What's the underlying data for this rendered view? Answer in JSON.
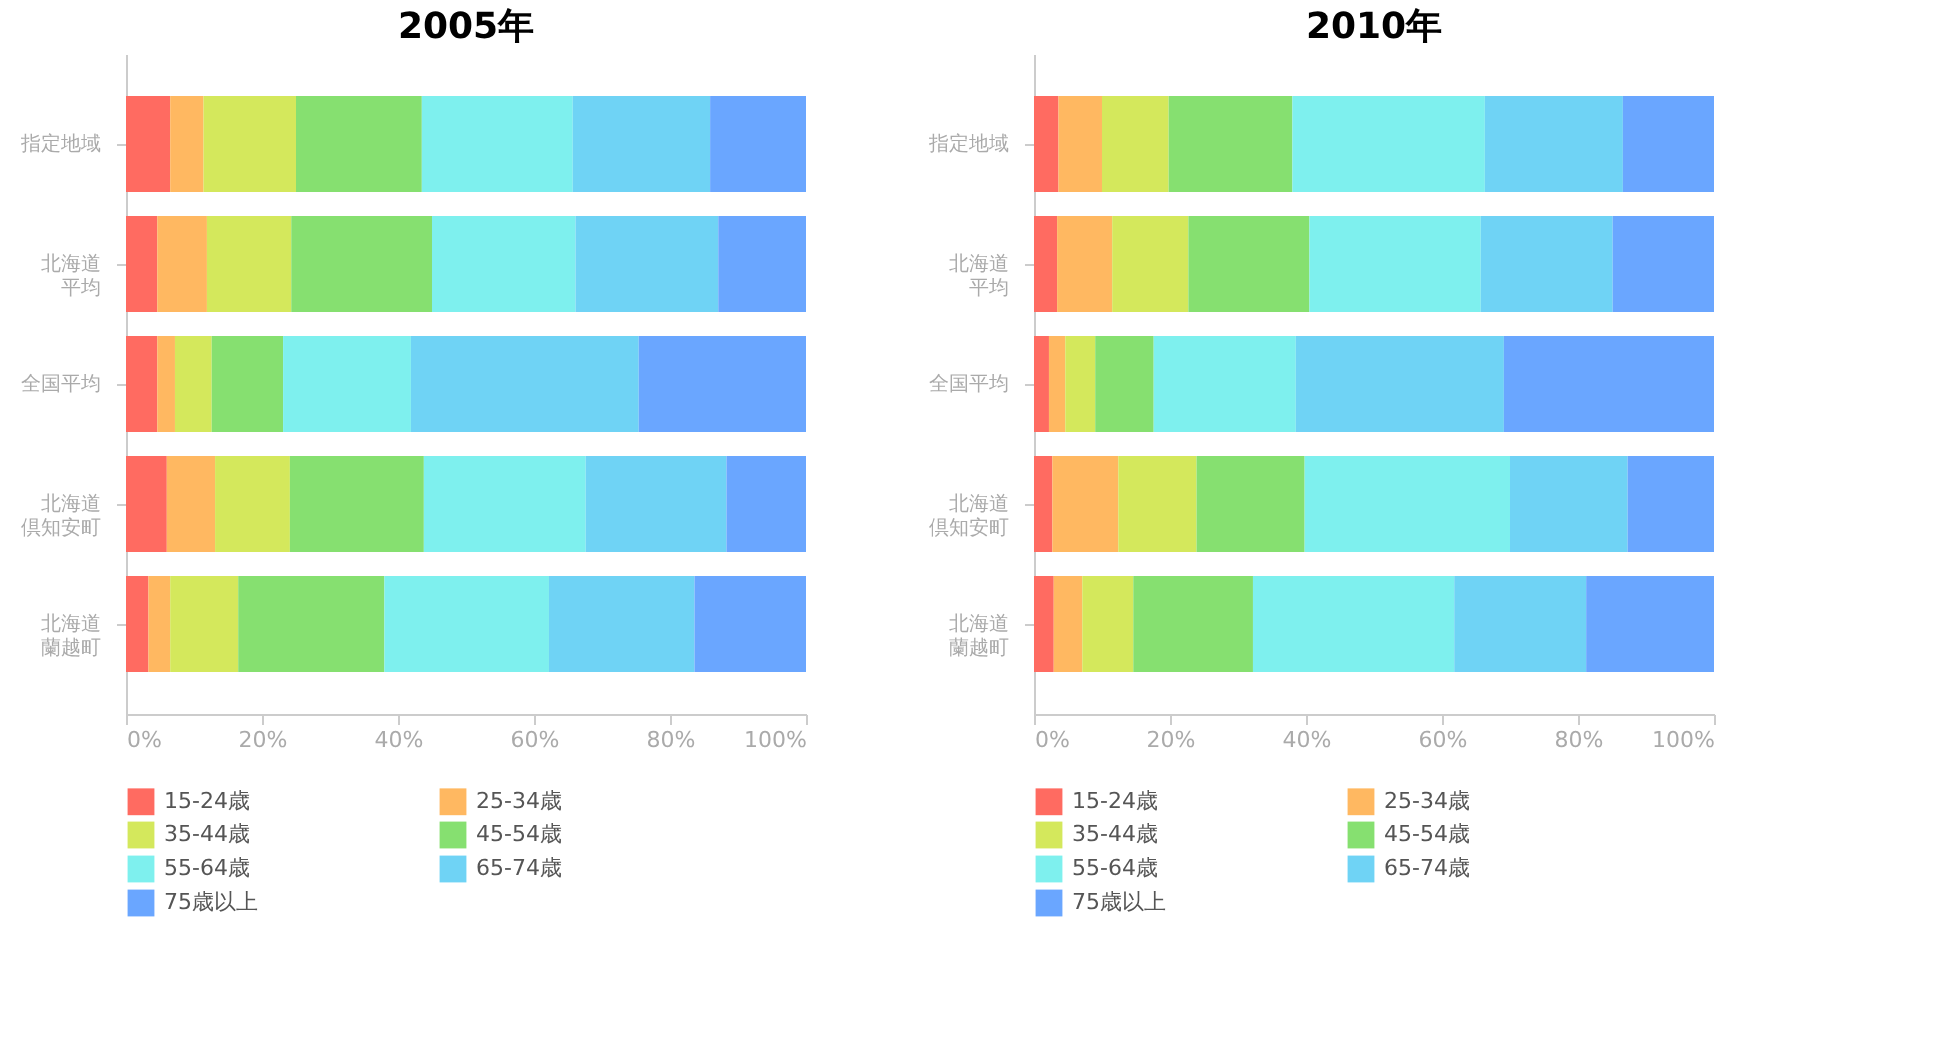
{
  "chart_data": [
    {
      "type": "bar",
      "orientation": "horizontal",
      "stacked": true,
      "title": "2005年",
      "categories": [
        "指定地域",
        "北海道平均",
        "全国平均",
        "北海道倶知安町",
        "北海道蘭越町"
      ],
      "xlim": [
        0,
        100
      ],
      "xticks": [
        {
          "value": 0,
          "label": "0%"
        },
        {
          "value": 20,
          "label": "20%"
        },
        {
          "value": 40,
          "label": "40%"
        },
        {
          "value": 60,
          "label": "60%"
        },
        {
          "value": 80,
          "label": "80%"
        },
        {
          "value": 100,
          "label": "100%"
        }
      ],
      "grid": false,
      "legend": "bottom",
      "series": [
        {
          "name": "15-24歳",
          "color": "#ff6b61",
          "values": [
            6.5,
            4.6,
            4.6,
            6.0,
            3.3
          ]
        },
        {
          "name": "25-34歳",
          "color": "#ffb861",
          "values": [
            4.9,
            7.3,
            2.6,
            7.1,
            3.2
          ]
        },
        {
          "name": "35-44歳",
          "color": "#d4e85c",
          "values": [
            13.6,
            12.4,
            5.4,
            11.0,
            10.0
          ]
        },
        {
          "name": "45-54歳",
          "color": "#86e070",
          "values": [
            18.5,
            20.7,
            10.5,
            19.7,
            21.5
          ]
        },
        {
          "name": "55-64歳",
          "color": "#7ef0ee",
          "values": [
            22.2,
            21.1,
            18.8,
            23.8,
            24.2
          ]
        },
        {
          "name": "65-74歳",
          "color": "#6fd3f5",
          "values": [
            20.2,
            21.0,
            33.5,
            20.7,
            21.4
          ]
        },
        {
          "name": "75歳以上",
          "color": "#6aa6ff",
          "values": [
            14.1,
            12.9,
            24.6,
            11.7,
            16.4
          ]
        }
      ]
    },
    {
      "type": "bar",
      "orientation": "horizontal",
      "stacked": true,
      "title": "2010年",
      "categories": [
        "指定地域",
        "北海道平均",
        "全国平均",
        "北海道倶知安町",
        "北海道蘭越町"
      ],
      "xlim": [
        0,
        100
      ],
      "xticks": [
        {
          "value": 0,
          "label": "0%"
        },
        {
          "value": 20,
          "label": "20%"
        },
        {
          "value": 40,
          "label": "40%"
        },
        {
          "value": 60,
          "label": "60%"
        },
        {
          "value": 80,
          "label": "80%"
        },
        {
          "value": 100,
          "label": "100%"
        }
      ],
      "grid": false,
      "legend": "bottom",
      "series": [
        {
          "name": "15-24歳",
          "color": "#ff6b61",
          "values": [
            3.6,
            3.4,
            2.2,
            2.7,
            2.9
          ]
        },
        {
          "name": "25-34歳",
          "color": "#ffb861",
          "values": [
            6.4,
            8.1,
            2.4,
            9.7,
            4.2
          ]
        },
        {
          "name": "35-44歳",
          "color": "#d4e85c",
          "values": [
            9.8,
            11.2,
            4.4,
            11.5,
            7.5
          ]
        },
        {
          "name": "45-54歳",
          "color": "#86e070",
          "values": [
            18.2,
            17.8,
            8.6,
            15.9,
            17.6
          ]
        },
        {
          "name": "55-64歳",
          "color": "#7ef0ee",
          "values": [
            28.3,
            25.2,
            20.9,
            30.2,
            29.6
          ]
        },
        {
          "name": "65-74歳",
          "color": "#6fd3f5",
          "values": [
            20.3,
            19.4,
            30.6,
            17.3,
            19.4
          ]
        },
        {
          "name": "75歳以上",
          "color": "#6aa6ff",
          "values": [
            13.4,
            14.9,
            30.9,
            12.7,
            18.8
          ]
        }
      ]
    }
  ]
}
